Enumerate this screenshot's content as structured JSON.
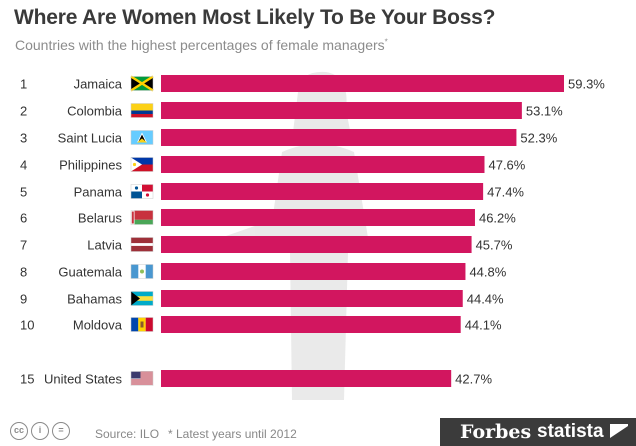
{
  "header": {
    "title": "Where Are Women Most Likely To Be Your Boss?",
    "subtitle": "Countries with the highest percentages of female managers",
    "subtitle_mark": "*"
  },
  "footer": {
    "source": "Source: ILO",
    "note": "* Latest years until 2012",
    "brand_forbes": "Forbes",
    "brand_statista": "statista"
  },
  "colors": {
    "bar": "#d2165f",
    "text": "#3c3c3c"
  },
  "chart_data": {
    "type": "bar",
    "orientation": "horizontal",
    "title": "Where Are Women Most Likely To Be Your Boss?",
    "subtitle": "Countries with the highest percentages of female managers",
    "value_unit": "%",
    "xlim": [
      0,
      60
    ],
    "grid": false,
    "rows": [
      {
        "rank": "1",
        "country": "Jamaica",
        "flag": "jamaica-flag-icon",
        "value": 59.3,
        "label": "59.3%"
      },
      {
        "rank": "2",
        "country": "Colombia",
        "flag": "colombia-flag-icon",
        "value": 53.1,
        "label": "53.1%"
      },
      {
        "rank": "3",
        "country": "Saint Lucia",
        "flag": "saint-lucia-flag-icon",
        "value": 52.3,
        "label": "52.3%"
      },
      {
        "rank": "4",
        "country": "Philippines",
        "flag": "philippines-flag-icon",
        "value": 47.6,
        "label": "47.6%"
      },
      {
        "rank": "5",
        "country": "Panama",
        "flag": "panama-flag-icon",
        "value": 47.4,
        "label": "47.4%"
      },
      {
        "rank": "6",
        "country": "Belarus",
        "flag": "belarus-flag-icon",
        "value": 46.2,
        "label": "46.2%"
      },
      {
        "rank": "7",
        "country": "Latvia",
        "flag": "latvia-flag-icon",
        "value": 45.7,
        "label": "45.7%"
      },
      {
        "rank": "8",
        "country": "Guatemala",
        "flag": "guatemala-flag-icon",
        "value": 44.8,
        "label": "44.8%"
      },
      {
        "rank": "9",
        "country": "Bahamas",
        "flag": "bahamas-flag-icon",
        "value": 44.4,
        "label": "44.4%"
      },
      {
        "rank": "10",
        "country": "Moldova",
        "flag": "moldova-flag-icon",
        "value": 44.1,
        "label": "44.1%"
      },
      {
        "rank": "15",
        "country": "United States",
        "flag": "united-states-flag-icon",
        "value": 42.7,
        "label": "42.7%"
      }
    ]
  }
}
